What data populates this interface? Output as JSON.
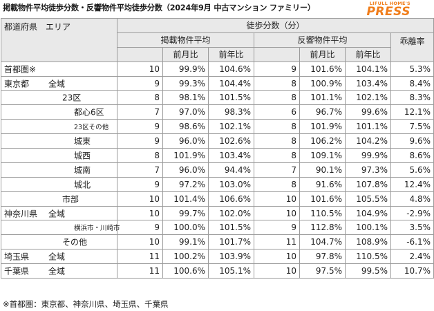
{
  "title": "掲載物件平均徒歩分数・反響物件平均徒歩分数（2024年9月 中古マンション ファミリー）",
  "logo": {
    "top": "LIFULL HOME'S",
    "main": "PRESS"
  },
  "header": {
    "region": "都道府県　エリア",
    "walk": "徒歩分数（分）",
    "listed": "掲載物件平均",
    "inquiry": "反響物件平均",
    "gap": "乖離率",
    "mom": "前月比",
    "yoy": "前年比",
    "mom2": "前月比",
    "yoy2": "前年比"
  },
  "rows": [
    {
      "pref": "首都圏※",
      "area": "",
      "sub": "",
      "l": "10",
      "lm": "99.9%",
      "ly": "104.6%",
      "i": "9",
      "im": "101.6%",
      "iy": "104.1%",
      "g": "5.3%"
    },
    {
      "pref": "東京都",
      "area": "全域",
      "sub": "",
      "l": "9",
      "lm": "99.3%",
      "ly": "104.4%",
      "i": "8",
      "im": "100.9%",
      "iy": "103.4%",
      "g": "8.4%"
    },
    {
      "pref": "",
      "area": "23区",
      "sub": "",
      "l": "8",
      "lm": "98.1%",
      "ly": "101.5%",
      "i": "8",
      "im": "101.1%",
      "iy": "102.1%",
      "g": "8.3%"
    },
    {
      "pref": "",
      "area": "",
      "sub": "都心6区",
      "l": "7",
      "lm": "97.0%",
      "ly": "98.3%",
      "i": "6",
      "im": "96.7%",
      "iy": "99.6%",
      "g": "12.1%"
    },
    {
      "pref": "",
      "area": "",
      "sub": "23区その他",
      "l": "9",
      "lm": "98.6%",
      "ly": "102.1%",
      "i": "8",
      "im": "101.9%",
      "iy": "101.1%",
      "g": "7.5%"
    },
    {
      "pref": "",
      "area": "",
      "sub": "城東",
      "l": "9",
      "lm": "96.0%",
      "ly": "102.6%",
      "i": "8",
      "im": "106.2%",
      "iy": "104.2%",
      "g": "9.6%"
    },
    {
      "pref": "",
      "area": "",
      "sub": "城西",
      "l": "8",
      "lm": "101.9%",
      "ly": "103.4%",
      "i": "8",
      "im": "109.1%",
      "iy": "99.9%",
      "g": "8.6%"
    },
    {
      "pref": "",
      "area": "",
      "sub": "城南",
      "l": "7",
      "lm": "96.0%",
      "ly": "94.4%",
      "i": "7",
      "im": "90.1%",
      "iy": "97.3%",
      "g": "5.6%"
    },
    {
      "pref": "",
      "area": "",
      "sub": "城北",
      "l": "9",
      "lm": "97.2%",
      "ly": "103.0%",
      "i": "8",
      "im": "91.6%",
      "iy": "107.8%",
      "g": "12.4%"
    },
    {
      "pref": "",
      "area": "市部",
      "sub": "",
      "l": "10",
      "lm": "101.4%",
      "ly": "106.6%",
      "i": "10",
      "im": "101.6%",
      "iy": "105.5%",
      "g": "4.8%"
    },
    {
      "pref": "神奈川県",
      "area": "全域",
      "sub": "",
      "l": "10",
      "lm": "99.7%",
      "ly": "102.0%",
      "i": "10",
      "im": "110.5%",
      "iy": "104.9%",
      "g": "-2.9%"
    },
    {
      "pref": "",
      "area": "",
      "sub": "横浜市・川崎市",
      "l": "9",
      "lm": "100.0%",
      "ly": "101.5%",
      "i": "9",
      "im": "112.8%",
      "iy": "100.1%",
      "g": "3.5%"
    },
    {
      "pref": "",
      "area": "その他",
      "sub": "",
      "l": "10",
      "lm": "99.1%",
      "ly": "101.7%",
      "i": "11",
      "im": "104.7%",
      "iy": "108.9%",
      "g": "-6.1%"
    },
    {
      "pref": "埼玉県",
      "area": "全域",
      "sub": "",
      "l": "11",
      "lm": "100.2%",
      "ly": "103.9%",
      "i": "10",
      "im": "97.8%",
      "iy": "110.5%",
      "g": "2.4%"
    },
    {
      "pref": "千葉県",
      "area": "全域",
      "sub": "",
      "l": "11",
      "lm": "100.6%",
      "ly": "105.1%",
      "i": "10",
      "im": "97.5%",
      "iy": "99.5%",
      "g": "10.7%"
    }
  ],
  "note": "※首都圏：東京都、神奈川県、埼玉県、千葉県"
}
